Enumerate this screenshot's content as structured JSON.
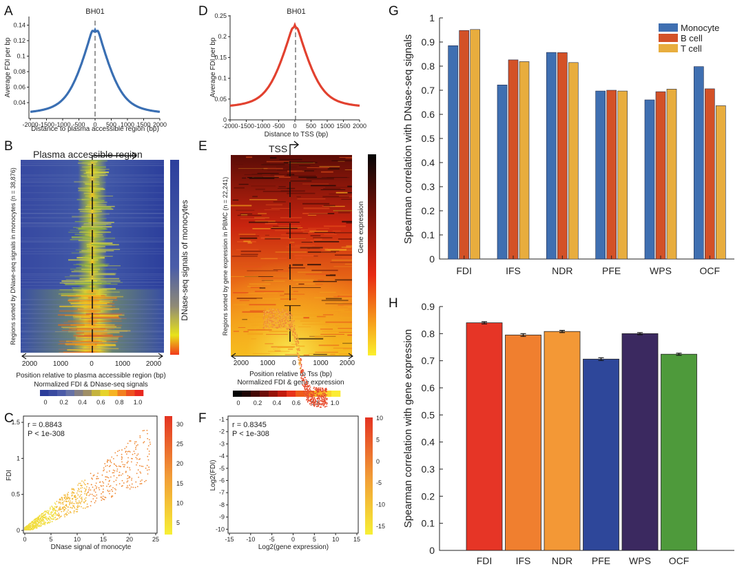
{
  "figure": {
    "panel_labels": [
      "A",
      "B",
      "C",
      "D",
      "E",
      "F",
      "G",
      "H"
    ],
    "panelA": {
      "title": "BH01",
      "xlabel": "Distance to plasma accessible region (bp)",
      "ylabel": "Average FDI per bp",
      "xticks": [
        "-2000",
        "-1500",
        "-1000",
        "-500",
        "0",
        "500",
        "1000",
        "1500",
        "2000"
      ],
      "yticks": [
        "0.04",
        "0.06",
        "0.08",
        "0.1",
        "0.12",
        "0.14"
      ],
      "line_color": "#3a6fb3"
    },
    "panelD": {
      "title": "BH01",
      "xlabel": "Distance to TSS (bp)",
      "ylabel": "Average FDI per bp",
      "xticks": [
        "-2000",
        "-1500",
        "-1000",
        "-500",
        "0",
        "500",
        "1000",
        "1500",
        "2000"
      ],
      "yticks": [
        "0",
        "0.05",
        "0.1",
        "0.15",
        "0.2",
        "0.25"
      ],
      "line_color": "#e2412f"
    },
    "panelB": {
      "header": "Plasma accessible region",
      "ylabel": "Regions sorted by DNase-seq signals in monocytes (n = 38,876)",
      "colorbar_label": "DNase-seq signals of monocytes",
      "xticks": [
        "2000",
        "1000",
        "0",
        "1000",
        "2000"
      ],
      "xlabel": "Position relative to plasma accessible region (bp)",
      "scale_title": "Normalized FDI & DNase-seq signals",
      "scale_ticks": [
        "0",
        "0.2",
        "0.4",
        "0.6",
        "0.8",
        "1.0"
      ]
    },
    "panelE": {
      "header": "TSS",
      "ylabel": "Regions sorted by gene expression in PBMC (n = 22,241)",
      "colorbar_label": "Gene expression",
      "xticks": [
        "2000",
        "1000",
        "0",
        "1000",
        "2000"
      ],
      "xlabel": "Position relative to Tss (bp)",
      "scale_title": "Normalized FDI & gene expression",
      "scale_ticks": [
        "0",
        "0.2",
        "0.4",
        "0.6",
        "0.8",
        "1.0"
      ]
    },
    "panelC": {
      "stat_r": "r = 0.8843",
      "stat_p": "P < 1e-308",
      "xlabel": "DNase signal of monocyte",
      "ylabel": "FDI",
      "xticks": [
        "0",
        "5",
        "10",
        "15",
        "20",
        "25"
      ],
      "yticks": [
        "0",
        "0.5",
        "1",
        "1.5"
      ],
      "cbar_ticks": [
        "5",
        "10",
        "15",
        "20",
        "25",
        "30"
      ]
    },
    "panelF": {
      "stat_r": "r = 0.8345",
      "stat_p": "P < 1e-308",
      "xlabel": "Log2(gene expression)",
      "ylabel": "Log2(FDI)",
      "xticks": [
        "-15",
        "-10",
        "-5",
        "0",
        "5",
        "10",
        "15"
      ],
      "yticks": [
        "-1",
        "-2",
        "-3",
        "-4",
        "-5",
        "-6",
        "-7",
        "-8",
        "-9",
        "-10"
      ],
      "cbar_ticks": [
        "10",
        "5",
        "0",
        "-5",
        "-10",
        "-15"
      ]
    }
  },
  "chart_data": [
    {
      "type": "bar",
      "panel": "G",
      "categories": [
        "FDI",
        "IFS",
        "NDR",
        "PFE",
        "WPS",
        "OCF"
      ],
      "series": [
        {
          "name": "Monocyte",
          "color": "#3f6fb1",
          "values": [
            0.885,
            0.722,
            0.857,
            0.697,
            0.66,
            0.798
          ]
        },
        {
          "name": "B cell",
          "color": "#d35127",
          "values": [
            0.948,
            0.826,
            0.856,
            0.7,
            0.694,
            0.706
          ]
        },
        {
          "name": "T cell",
          "color": "#e8ad3e",
          "values": [
            0.952,
            0.819,
            0.815,
            0.697,
            0.705,
            0.636
          ]
        }
      ],
      "ylabel": "Spearman correlation with DNase-seq signals",
      "ylim": [
        0,
        1
      ],
      "yticks": [
        "0",
        "0.1",
        "0.2",
        "0.3",
        "0.4",
        "0.5",
        "0.6",
        "0.7",
        "0.8",
        "0.9",
        "1"
      ],
      "legend_position": "top-right"
    },
    {
      "type": "bar",
      "panel": "H",
      "categories": [
        "FDI",
        "IFS",
        "NDR",
        "PFE",
        "WPS",
        "OCF"
      ],
      "values": [
        0.84,
        0.795,
        0.808,
        0.706,
        0.8,
        0.724
      ],
      "errors": [
        0.004,
        0.005,
        0.004,
        0.005,
        0.004,
        0.004
      ],
      "colors": [
        "#e63526",
        "#f07f2f",
        "#f39836",
        "#2e479a",
        "#3b2960",
        "#4e9a3b"
      ],
      "ylabel": "Spearman correlation with gene expression",
      "ylim": [
        0,
        0.9
      ],
      "yticks": [
        "0",
        "0.1",
        "0.2",
        "0.3",
        "0.4",
        "0.5",
        "0.6",
        "0.7",
        "0.8",
        "0.9"
      ]
    }
  ]
}
